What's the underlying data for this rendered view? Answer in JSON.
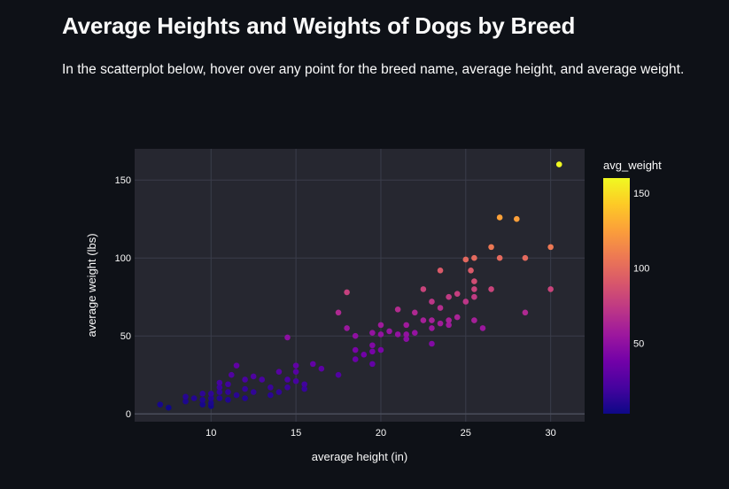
{
  "page": {
    "title": "Average Heights and Weights of Dogs by Breed",
    "description": "In the scatterplot below, hover over any point for the breed name, average height, and average weight."
  },
  "colors": {
    "background": "#0e1117",
    "plot_background": "#262730",
    "text": "#fafafa"
  },
  "chart_data": {
    "type": "scatter",
    "title": "",
    "xlabel": "average height (in)",
    "ylabel": "average weight (lbs)",
    "xlim": [
      5.5,
      32
    ],
    "ylim": [
      -5,
      170
    ],
    "x_ticks": [
      10,
      15,
      20,
      25,
      30
    ],
    "y_ticks": [
      0,
      50,
      100,
      150
    ],
    "grid": true,
    "colorbar": {
      "title": "avg_weight",
      "range": [
        3,
        160
      ],
      "ticks": [
        50,
        100,
        150
      ],
      "colorscale": [
        "#0d0887",
        "#46039f",
        "#7201a8",
        "#9c179e",
        "#bd3786",
        "#d8576b",
        "#ed7953",
        "#fb9f3a",
        "#fdca26",
        "#f0f921"
      ]
    },
    "points": [
      {
        "x": 7,
        "y": 6
      },
      {
        "x": 7.5,
        "y": 4
      },
      {
        "x": 8.5,
        "y": 8
      },
      {
        "x": 8.5,
        "y": 11
      },
      {
        "x": 9,
        "y": 10
      },
      {
        "x": 9.5,
        "y": 6
      },
      {
        "x": 9.5,
        "y": 9
      },
      {
        "x": 9.5,
        "y": 13
      },
      {
        "x": 10,
        "y": 5
      },
      {
        "x": 10,
        "y": 7
      },
      {
        "x": 10,
        "y": 10
      },
      {
        "x": 10,
        "y": 13
      },
      {
        "x": 10.5,
        "y": 10
      },
      {
        "x": 10.5,
        "y": 14
      },
      {
        "x": 10.5,
        "y": 17
      },
      {
        "x": 10.5,
        "y": 20
      },
      {
        "x": 11,
        "y": 9
      },
      {
        "x": 11,
        "y": 14
      },
      {
        "x": 11,
        "y": 19
      },
      {
        "x": 11.2,
        "y": 25
      },
      {
        "x": 11.5,
        "y": 12
      },
      {
        "x": 11.5,
        "y": 31
      },
      {
        "x": 12,
        "y": 10
      },
      {
        "x": 12,
        "y": 16
      },
      {
        "x": 12,
        "y": 22
      },
      {
        "x": 12.5,
        "y": 14
      },
      {
        "x": 12.5,
        "y": 24
      },
      {
        "x": 13,
        "y": 22
      },
      {
        "x": 13.5,
        "y": 12
      },
      {
        "x": 13.5,
        "y": 17
      },
      {
        "x": 14,
        "y": 14
      },
      {
        "x": 14,
        "y": 27
      },
      {
        "x": 14.5,
        "y": 17
      },
      {
        "x": 14.5,
        "y": 22
      },
      {
        "x": 14.5,
        "y": 49
      },
      {
        "x": 15,
        "y": 21
      },
      {
        "x": 15,
        "y": 27
      },
      {
        "x": 15,
        "y": 31
      },
      {
        "x": 15.5,
        "y": 16
      },
      {
        "x": 15.5,
        "y": 19
      },
      {
        "x": 16,
        "y": 32
      },
      {
        "x": 16.5,
        "y": 29
      },
      {
        "x": 17.5,
        "y": 25
      },
      {
        "x": 17.5,
        "y": 65
      },
      {
        "x": 18,
        "y": 55
      },
      {
        "x": 18,
        "y": 78
      },
      {
        "x": 18.5,
        "y": 35
      },
      {
        "x": 18.5,
        "y": 41
      },
      {
        "x": 18.5,
        "y": 50
      },
      {
        "x": 19,
        "y": 38
      },
      {
        "x": 19.5,
        "y": 32
      },
      {
        "x": 19.5,
        "y": 40
      },
      {
        "x": 19.5,
        "y": 44
      },
      {
        "x": 19.5,
        "y": 52
      },
      {
        "x": 20,
        "y": 41
      },
      {
        "x": 20,
        "y": 51
      },
      {
        "x": 20,
        "y": 57
      },
      {
        "x": 20.5,
        "y": 53
      },
      {
        "x": 21,
        "y": 51
      },
      {
        "x": 21,
        "y": 67
      },
      {
        "x": 21.5,
        "y": 48
      },
      {
        "x": 21.5,
        "y": 51
      },
      {
        "x": 21.5,
        "y": 57
      },
      {
        "x": 22,
        "y": 52
      },
      {
        "x": 22,
        "y": 65
      },
      {
        "x": 22.5,
        "y": 60
      },
      {
        "x": 22.5,
        "y": 80
      },
      {
        "x": 23,
        "y": 45
      },
      {
        "x": 23,
        "y": 55
      },
      {
        "x": 23,
        "y": 60
      },
      {
        "x": 23,
        "y": 72
      },
      {
        "x": 23.5,
        "y": 58
      },
      {
        "x": 23.5,
        "y": 68
      },
      {
        "x": 23.5,
        "y": 92
      },
      {
        "x": 24,
        "y": 57
      },
      {
        "x": 24,
        "y": 60
      },
      {
        "x": 24,
        "y": 75
      },
      {
        "x": 24.5,
        "y": 62
      },
      {
        "x": 24.5,
        "y": 77
      },
      {
        "x": 25,
        "y": 72
      },
      {
        "x": 25,
        "y": 99
      },
      {
        "x": 25.3,
        "y": 92
      },
      {
        "x": 25.5,
        "y": 60
      },
      {
        "x": 25.5,
        "y": 75
      },
      {
        "x": 25.5,
        "y": 80
      },
      {
        "x": 25.5,
        "y": 85
      },
      {
        "x": 25.5,
        "y": 100
      },
      {
        "x": 26,
        "y": 55
      },
      {
        "x": 26.5,
        "y": 80
      },
      {
        "x": 26.5,
        "y": 107
      },
      {
        "x": 27,
        "y": 100
      },
      {
        "x": 27,
        "y": 126
      },
      {
        "x": 28,
        "y": 125
      },
      {
        "x": 28.5,
        "y": 65
      },
      {
        "x": 28.5,
        "y": 100
      },
      {
        "x": 30,
        "y": 80
      },
      {
        "x": 30,
        "y": 107
      },
      {
        "x": 30.5,
        "y": 160
      }
    ]
  }
}
